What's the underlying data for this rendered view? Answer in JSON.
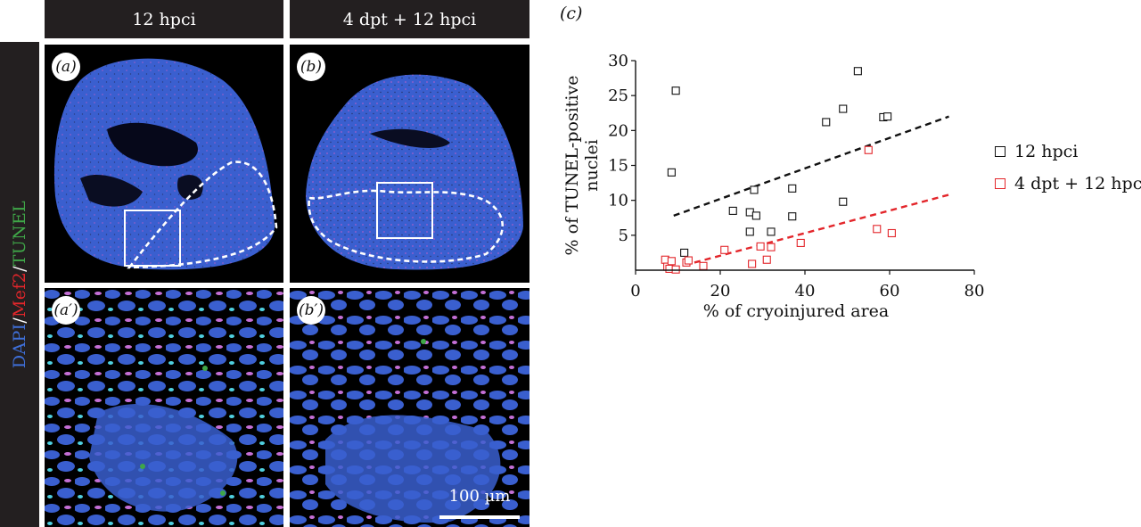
{
  "side_label": {
    "dapi": "DAPI",
    "sep1": "/",
    "mef2": "Mef2",
    "sep2": "/",
    "tunel": "TUNEL"
  },
  "columns": {
    "a": "12 hpci",
    "b": "4 dpt + 12 hpci"
  },
  "panels": {
    "a": "(a)",
    "b": "(b)",
    "a2": "(a′)",
    "b2": "(b′)",
    "c": "(c)"
  },
  "scale_bar": "100 µm",
  "colors": {
    "dapi": "#3f6fd8",
    "mef2": "#e3262b",
    "tunel": "#3fa648",
    "series1": "#111111",
    "series2": "#e3262b"
  },
  "chart_data": {
    "type": "scatter",
    "xlabel": "% of cryoinjured area",
    "ylabel_lines": [
      "% of TUNEL-positive",
      "nuclei"
    ],
    "xlim": [
      0,
      80
    ],
    "ylim": [
      0,
      30
    ],
    "xticks": [
      0,
      20,
      40,
      60,
      80
    ],
    "yticks": [
      5,
      10,
      15,
      20,
      25,
      30
    ],
    "series": [
      {
        "name": "12 hpci",
        "color": "#111111",
        "points": [
          [
            8.5,
            14
          ],
          [
            9.5,
            25.7
          ],
          [
            11.5,
            2.5
          ],
          [
            23,
            8.5
          ],
          [
            27,
            8.3
          ],
          [
            27,
            5.5
          ],
          [
            28,
            11.5
          ],
          [
            28.5,
            7.8
          ],
          [
            32,
            5.5
          ],
          [
            37,
            11.7
          ],
          [
            37,
            7.7
          ],
          [
            45,
            21.2
          ],
          [
            49,
            23.1
          ],
          [
            49,
            9.8
          ],
          [
            52.5,
            28.5
          ],
          [
            58.5,
            21.9
          ],
          [
            59.5,
            22
          ]
        ],
        "trend": [
          [
            9,
            7.8
          ],
          [
            74,
            22
          ]
        ]
      },
      {
        "name": "4 dpt + 12 hpci",
        "color": "#e3262b",
        "points": [
          [
            7,
            1.5
          ],
          [
            7.5,
            0.5
          ],
          [
            8,
            0.2
          ],
          [
            8.5,
            1.3
          ],
          [
            9.5,
            0.1
          ],
          [
            12,
            1.1
          ],
          [
            12.5,
            1.4
          ],
          [
            16,
            0.6
          ],
          [
            21,
            2.9
          ],
          [
            27.5,
            0.9
          ],
          [
            29.5,
            3.4
          ],
          [
            31,
            1.5
          ],
          [
            32,
            3.3
          ],
          [
            39,
            3.9
          ],
          [
            55,
            17.2
          ],
          [
            57,
            5.9
          ],
          [
            60.5,
            5.3
          ]
        ],
        "trend": [
          [
            9,
            0.3
          ],
          [
            74,
            10.8
          ]
        ]
      }
    ]
  }
}
